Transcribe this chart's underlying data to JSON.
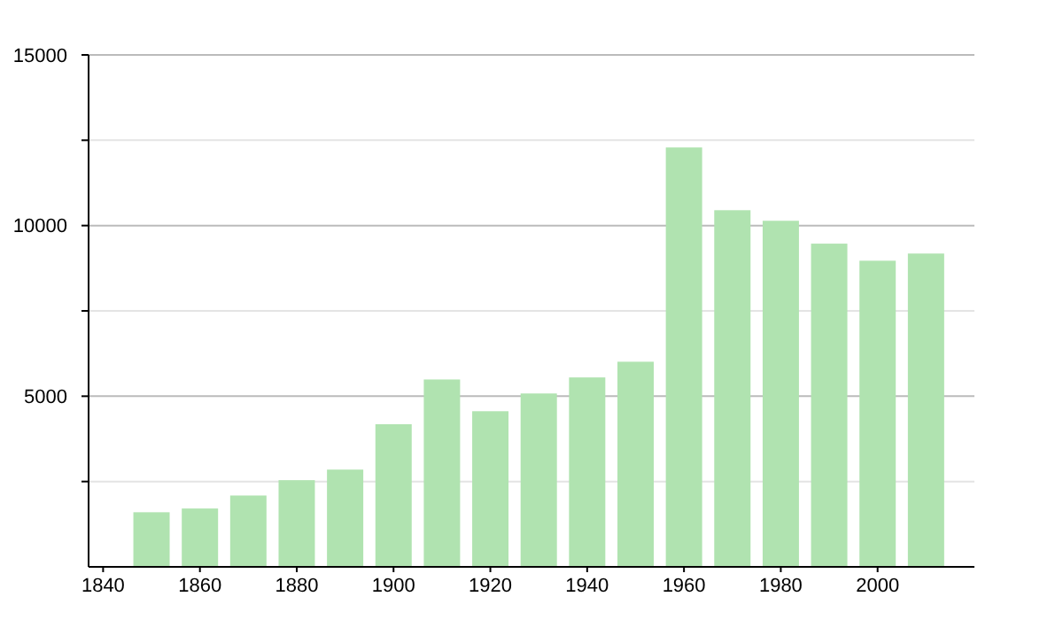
{
  "chart_data": {
    "type": "bar",
    "x": [
      1850,
      1860,
      1870,
      1880,
      1890,
      1900,
      1910,
      1920,
      1930,
      1940,
      1950,
      1960,
      1970,
      1980,
      1990,
      2000,
      2010
    ],
    "values": [
      1600,
      1710,
      2090,
      2540,
      2850,
      4180,
      5490,
      4560,
      5080,
      5550,
      6010,
      12290,
      10450,
      10140,
      9470,
      8970,
      9180
    ],
    "color": "#b0e3b0",
    "xlim": [
      1837,
      2020
    ],
    "xticks": [
      1840,
      1860,
      1880,
      1900,
      1920,
      1940,
      1960,
      1980,
      2000
    ],
    "ylim": [
      0,
      15000
    ],
    "yticks": [
      {
        "value": 2500,
        "label": null
      },
      5000,
      {
        "value": 7500,
        "label": null
      },
      10000,
      {
        "value": 12500,
        "label": null
      },
      15000
    ],
    "grid": "y"
  }
}
